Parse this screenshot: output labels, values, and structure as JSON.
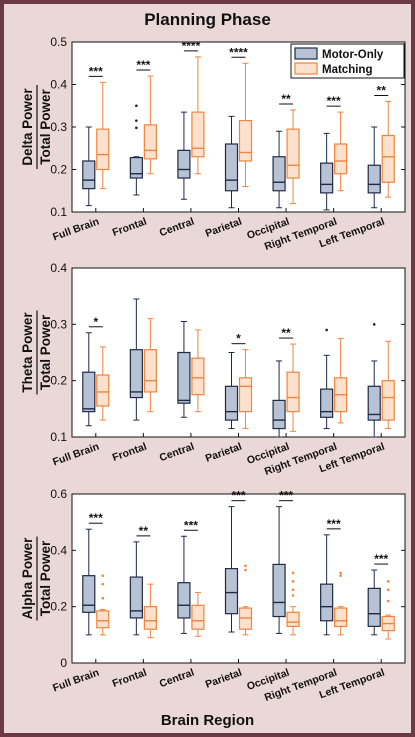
{
  "figure": {
    "title": "Planning Phase",
    "xlabel": "Brain Region"
  },
  "colors": {
    "frame": "#6b3a45",
    "panel_bg": "#ead8d6",
    "motor_fill": "#b7c2d4",
    "motor_edge": "#1d2b45",
    "matching_fill": "#fde1cc",
    "matching_edge": "#f0843c"
  },
  "chart_data": [
    {
      "type": "box",
      "ylabel_top": "Delta Power",
      "ylabel_bottom": "Total Power",
      "ylim": [
        0.1,
        0.5
      ],
      "yticks": [
        "0.1",
        "0.2",
        "0.3",
        "0.4",
        "0.5"
      ],
      "categories": [
        "Full Brain",
        "Frontal",
        "Central",
        "Parietal",
        "Occipital",
        "Right Temporal",
        "Left Temporal"
      ],
      "significance": [
        "***",
        "***",
        "****",
        "****",
        "**",
        "***",
        "**"
      ],
      "legend": [
        "Motor-Only",
        "Matching"
      ],
      "series": [
        {
          "name": "Motor-Only",
          "boxes": [
            {
              "min": 0.115,
              "q1": 0.155,
              "med": 0.175,
              "q3": 0.22,
              "max": 0.3,
              "outliers": []
            },
            {
              "min": 0.14,
              "q1": 0.18,
              "med": 0.19,
              "q3": 0.228,
              "max": 0.23,
              "outliers": [
                0.35,
                0.315,
                0.298
              ]
            },
            {
              "min": 0.13,
              "q1": 0.18,
              "med": 0.2,
              "q3": 0.245,
              "max": 0.335,
              "outliers": []
            },
            {
              "min": 0.11,
              "q1": 0.15,
              "med": 0.175,
              "q3": 0.26,
              "max": 0.325,
              "outliers": []
            },
            {
              "min": 0.11,
              "q1": 0.15,
              "med": 0.17,
              "q3": 0.23,
              "max": 0.29,
              "outliers": []
            },
            {
              "min": 0.105,
              "q1": 0.145,
              "med": 0.165,
              "q3": 0.215,
              "max": 0.285,
              "outliers": []
            },
            {
              "min": 0.11,
              "q1": 0.145,
              "med": 0.165,
              "q3": 0.21,
              "max": 0.3,
              "outliers": []
            }
          ]
        },
        {
          "name": "Matching",
          "boxes": [
            {
              "min": 0.155,
              "q1": 0.2,
              "med": 0.235,
              "q3": 0.295,
              "max": 0.405,
              "outliers": []
            },
            {
              "min": 0.19,
              "q1": 0.225,
              "med": 0.245,
              "q3": 0.305,
              "max": 0.42,
              "outliers": []
            },
            {
              "min": 0.19,
              "q1": 0.23,
              "med": 0.25,
              "q3": 0.335,
              "max": 0.465,
              "outliers": []
            },
            {
              "min": 0.16,
              "q1": 0.22,
              "med": 0.24,
              "q3": 0.315,
              "max": 0.45,
              "outliers": []
            },
            {
              "min": 0.12,
              "q1": 0.18,
              "med": 0.21,
              "q3": 0.295,
              "max": 0.34,
              "outliers": []
            },
            {
              "min": 0.15,
              "q1": 0.19,
              "med": 0.22,
              "q3": 0.26,
              "max": 0.335,
              "outliers": []
            },
            {
              "min": 0.135,
              "q1": 0.17,
              "med": 0.23,
              "q3": 0.28,
              "max": 0.36,
              "outliers": []
            }
          ]
        }
      ]
    },
    {
      "type": "box",
      "ylabel_top": "Theta Power",
      "ylabel_bottom": "Total Power",
      "ylim": [
        0.1,
        0.4
      ],
      "yticks": [
        "0.1",
        "0.2",
        "0.3",
        "0.4"
      ],
      "categories": [
        "Full Brain",
        "Frontal",
        "Central",
        "Parietal",
        "Occipital",
        "Right Temporal",
        "Left Temporal"
      ],
      "significance": [
        "*",
        "",
        "",
        "*",
        "**",
        "",
        ""
      ],
      "legend": [],
      "series": [
        {
          "name": "Motor-Only",
          "boxes": [
            {
              "min": 0.12,
              "q1": 0.145,
              "med": 0.15,
              "q3": 0.215,
              "max": 0.285,
              "outliers": []
            },
            {
              "min": 0.13,
              "q1": 0.17,
              "med": 0.18,
              "q3": 0.255,
              "max": 0.345,
              "outliers": []
            },
            {
              "min": 0.135,
              "q1": 0.16,
              "med": 0.165,
              "q3": 0.25,
              "max": 0.305,
              "outliers": []
            },
            {
              "min": 0.115,
              "q1": 0.13,
              "med": 0.145,
              "q3": 0.19,
              "max": 0.25,
              "outliers": []
            },
            {
              "min": 0.1,
              "q1": 0.115,
              "med": 0.13,
              "q3": 0.165,
              "max": 0.235,
              "outliers": []
            },
            {
              "min": 0.115,
              "q1": 0.135,
              "med": 0.145,
              "q3": 0.185,
              "max": 0.245,
              "outliers": [
                0.29
              ]
            },
            {
              "min": 0.1,
              "q1": 0.13,
              "med": 0.14,
              "q3": 0.19,
              "max": 0.235,
              "outliers": [
                0.3
              ]
            }
          ]
        },
        {
          "name": "Matching",
          "boxes": [
            {
              "min": 0.13,
              "q1": 0.155,
              "med": 0.18,
              "q3": 0.21,
              "max": 0.26,
              "outliers": []
            },
            {
              "min": 0.145,
              "q1": 0.18,
              "med": 0.2,
              "q3": 0.255,
              "max": 0.31,
              "outliers": []
            },
            {
              "min": 0.145,
              "q1": 0.175,
              "med": 0.205,
              "q3": 0.24,
              "max": 0.29,
              "outliers": []
            },
            {
              "min": 0.115,
              "q1": 0.145,
              "med": 0.19,
              "q3": 0.205,
              "max": 0.255,
              "outliers": []
            },
            {
              "min": 0.11,
              "q1": 0.145,
              "med": 0.17,
              "q3": 0.215,
              "max": 0.265,
              "outliers": []
            },
            {
              "min": 0.125,
              "q1": 0.145,
              "med": 0.175,
              "q3": 0.205,
              "max": 0.275,
              "outliers": []
            },
            {
              "min": 0.115,
              "q1": 0.13,
              "med": 0.17,
              "q3": 0.2,
              "max": 0.27,
              "outliers": []
            }
          ]
        }
      ]
    },
    {
      "type": "box",
      "ylabel_top": "Alpha Power",
      "ylabel_bottom": "Total Power",
      "ylim": [
        0,
        0.6
      ],
      "yticks": [
        "0",
        "0.2",
        "0.4",
        "0.6"
      ],
      "categories": [
        "Full Brain",
        "Frontal",
        "Central",
        "Parietal",
        "Occipital",
        "Right Temporal",
        "Left Temporal"
      ],
      "significance": [
        "***",
        "**",
        "***",
        "***",
        "***",
        "***",
        "***"
      ],
      "legend": [],
      "series": [
        {
          "name": "Motor-Only",
          "boxes": [
            {
              "min": 0.1,
              "q1": 0.18,
              "med": 0.205,
              "q3": 0.31,
              "max": 0.475,
              "outliers": []
            },
            {
              "min": 0.1,
              "q1": 0.16,
              "med": 0.185,
              "q3": 0.305,
              "max": 0.43,
              "outliers": []
            },
            {
              "min": 0.105,
              "q1": 0.16,
              "med": 0.205,
              "q3": 0.285,
              "max": 0.45,
              "outliers": []
            },
            {
              "min": 0.11,
              "q1": 0.175,
              "med": 0.25,
              "q3": 0.335,
              "max": 0.555,
              "outliers": []
            },
            {
              "min": 0.105,
              "q1": 0.165,
              "med": 0.215,
              "q3": 0.35,
              "max": 0.555,
              "outliers": []
            },
            {
              "min": 0.1,
              "q1": 0.15,
              "med": 0.2,
              "q3": 0.28,
              "max": 0.455,
              "outliers": []
            },
            {
              "min": 0.1,
              "q1": 0.13,
              "med": 0.175,
              "q3": 0.265,
              "max": 0.33,
              "outliers": []
            }
          ]
        },
        {
          "name": "Matching",
          "boxes": [
            {
              "min": 0.1,
              "q1": 0.125,
              "med": 0.15,
              "q3": 0.185,
              "max": 0.19,
              "outliers": [
                0.31,
                0.28,
                0.23
              ]
            },
            {
              "min": 0.09,
              "q1": 0.12,
              "med": 0.15,
              "q3": 0.2,
              "max": 0.28,
              "outliers": []
            },
            {
              "min": 0.095,
              "q1": 0.12,
              "med": 0.15,
              "q3": 0.205,
              "max": 0.25,
              "outliers": []
            },
            {
              "min": 0.1,
              "q1": 0.12,
              "med": 0.16,
              "q3": 0.195,
              "max": 0.2,
              "outliers": [
                0.345,
                0.33
              ]
            },
            {
              "min": 0.1,
              "q1": 0.13,
              "med": 0.145,
              "q3": 0.18,
              "max": 0.2,
              "outliers": [
                0.32,
                0.29,
                0.26,
                0.24
              ]
            },
            {
              "min": 0.1,
              "q1": 0.13,
              "med": 0.15,
              "q3": 0.195,
              "max": 0.2,
              "outliers": [
                0.32,
                0.31
              ]
            },
            {
              "min": 0.085,
              "q1": 0.115,
              "med": 0.14,
              "q3": 0.165,
              "max": 0.17,
              "outliers": [
                0.29,
                0.26,
                0.22
              ]
            }
          ]
        }
      ]
    }
  ]
}
